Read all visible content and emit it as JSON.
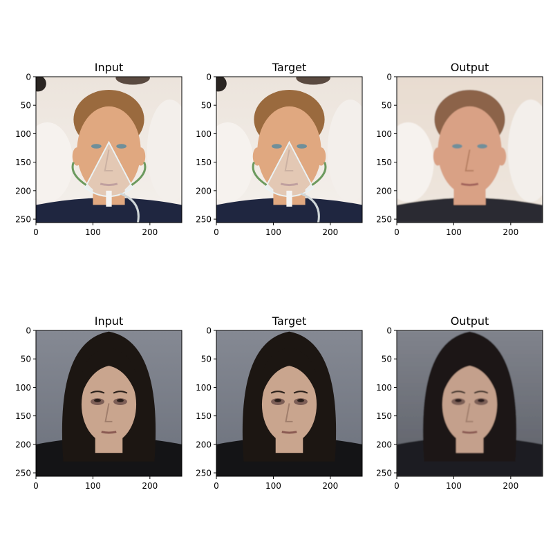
{
  "chart_data": {
    "type": "image-grid",
    "panel_titles": [
      "Input",
      "Target",
      "Output",
      "Input",
      "Target",
      "Output"
    ],
    "xlim": [
      0,
      256
    ],
    "ylim": [
      256,
      0
    ],
    "x_ticks": [
      0,
      100,
      200
    ],
    "y_ticks": [
      0,
      50,
      100,
      150,
      200,
      250
    ],
    "grid": false,
    "rows": [
      {
        "subject": "man with oxygen mask",
        "panels": [
          {
            "title": "Input",
            "bg_top": "#ece4dc",
            "bg_bottom": "#f4f0ec",
            "skin": "#e0a880",
            "hair": "#9a6a3e",
            "shirt": "#1f2640",
            "mask": true,
            "blur": 0
          },
          {
            "title": "Target",
            "bg_top": "#ece4dc",
            "bg_bottom": "#f4f0ec",
            "skin": "#e0a880",
            "hair": "#9a6a3e",
            "shirt": "#1f2640",
            "mask": true,
            "blur": 0
          },
          {
            "title": "Output",
            "bg_top": "#e8dcd0",
            "bg_bottom": "#eee6de",
            "skin": "#d9a185",
            "hair": "#8c6448",
            "shirt": "#2b2a30",
            "mask": false,
            "blur": 0.8
          }
        ]
      },
      {
        "subject": "long dark-haired man",
        "panels": [
          {
            "title": "Input",
            "bg_top": "#858993",
            "bg_bottom": "#6c717c",
            "skin": "#c9a58e",
            "hair": "#1c1612",
            "shirt": "#141416",
            "mask": false,
            "blur": 0
          },
          {
            "title": "Target",
            "bg_top": "#858993",
            "bg_bottom": "#6c717c",
            "skin": "#c9a58e",
            "hair": "#1c1612",
            "shirt": "#141416",
            "mask": false,
            "blur": 0
          },
          {
            "title": "Output",
            "bg_top": "#80838c",
            "bg_bottom": "#5d6068",
            "skin": "#c4a08c",
            "hair": "#1f1915",
            "shirt": "#1d1e22",
            "mask": false,
            "blur": 0.8
          }
        ]
      }
    ]
  }
}
